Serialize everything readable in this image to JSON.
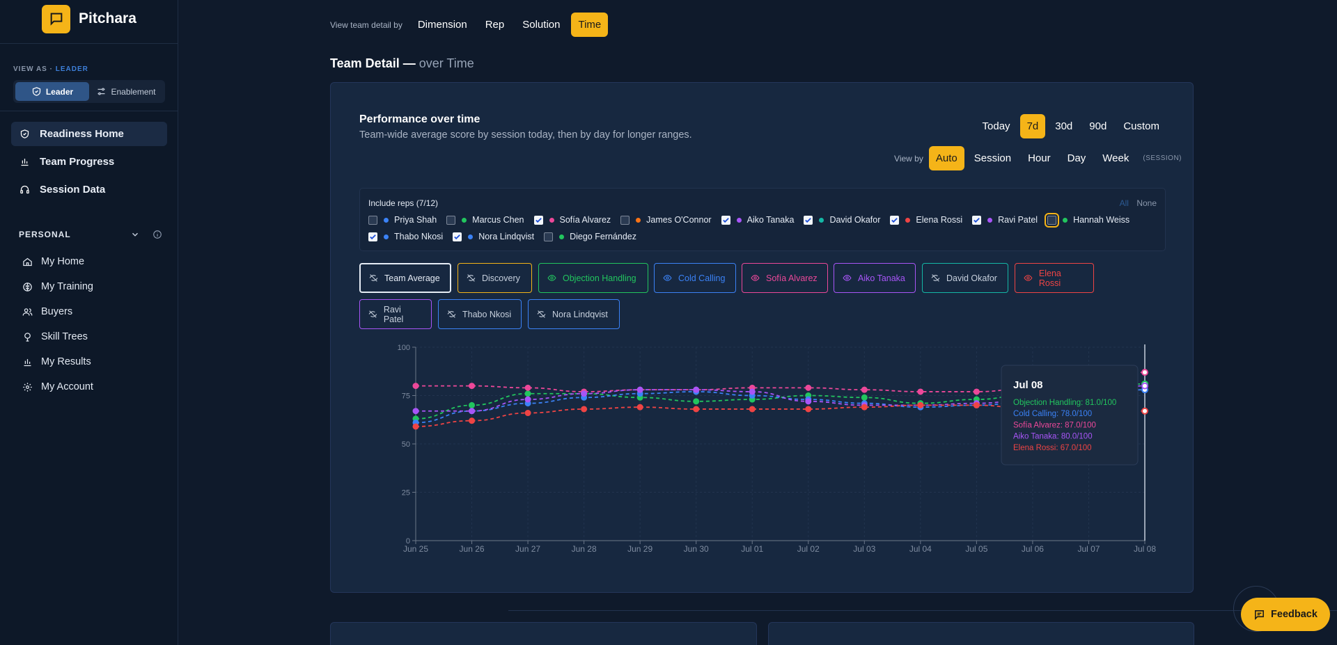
{
  "brand": {
    "name": "Pitchara"
  },
  "view_as": {
    "label": "VIEW AS",
    "role": "LEADER",
    "options": [
      "Leader",
      "Enablement"
    ],
    "active": "Leader"
  },
  "nav": [
    {
      "label": "Readiness Home",
      "icon": "shield-icon",
      "active": true
    },
    {
      "label": "Team Progress",
      "icon": "bar-chart-icon",
      "active": false
    },
    {
      "label": "Session Data",
      "icon": "headset-icon",
      "active": false
    }
  ],
  "personal": {
    "label": "PERSONAL",
    "items": [
      {
        "label": "My Home",
        "icon": "home-icon"
      },
      {
        "label": "My Training",
        "icon": "brain-icon"
      },
      {
        "label": "Buyers",
        "icon": "users-icon"
      },
      {
        "label": "Skill Trees",
        "icon": "tree-icon"
      },
      {
        "label": "My Results",
        "icon": "bar-chart-icon"
      },
      {
        "label": "My Account",
        "icon": "gear-icon"
      }
    ]
  },
  "topbar": {
    "label": "View team detail by",
    "options": [
      "Dimension",
      "Rep",
      "Solution",
      "Time"
    ],
    "active": "Time"
  },
  "page_title": {
    "main": "Team Detail —",
    "sub": "over Time"
  },
  "performance": {
    "title": "Performance over time",
    "subtitle": "Team-wide average score by session today, then by day for longer ranges.",
    "ranges": [
      "Today",
      "7d",
      "30d",
      "90d",
      "Custom"
    ],
    "active_range": "7d",
    "view_by_label": "View by",
    "view_by": [
      "Auto",
      "Session",
      "Hour",
      "Day",
      "Week"
    ],
    "active_view_by": "Auto",
    "view_by_note": "(SESSION)"
  },
  "reps": {
    "title": "Include reps (7/12)",
    "all_label": "All",
    "none_label": "None",
    "row1": [
      {
        "name": "Priya Shah",
        "color": "#3b82f6",
        "checked": false
      },
      {
        "name": "Marcus Chen",
        "color": "#22c55e",
        "checked": false
      },
      {
        "name": "Sofía Alvarez",
        "color": "#ec4899",
        "checked": true
      },
      {
        "name": "James O'Connor",
        "color": "#f97316",
        "checked": false
      },
      {
        "name": "Aiko Tanaka",
        "color": "#a855f7",
        "checked": true
      },
      {
        "name": "David Okafor",
        "color": "#14b8a6",
        "checked": true
      },
      {
        "name": "Elena Rossi",
        "color": "#ef4444",
        "checked": true
      },
      {
        "name": "Ravi Patel",
        "color": "#a855f7",
        "checked": true
      },
      {
        "name": "Hannah Weiss",
        "color": "#22c55e",
        "checked": false,
        "focused": true
      }
    ],
    "row2": [
      {
        "name": "Thabo Nkosi",
        "color": "#3b82f6",
        "checked": true
      },
      {
        "name": "Nora Lindqvist",
        "color": "#3b82f6",
        "checked": true
      },
      {
        "name": "Diego Fernández",
        "color": "#22c55e",
        "checked": false
      }
    ]
  },
  "series_toggles": [
    {
      "label": "Team Average",
      "color": "#e6ecf5",
      "visible": false
    },
    {
      "label": "Discovery",
      "color": "#f5b418",
      "visible": false
    },
    {
      "label": "Objection Handling",
      "color": "#22c55e",
      "visible": true
    },
    {
      "label": "Cold Calling",
      "color": "#3b82f6",
      "visible": true
    },
    {
      "label": "Sofía Alvarez",
      "color": "#ec4899",
      "visible": true
    },
    {
      "label": "Aiko Tanaka",
      "color": "#a855f7",
      "visible": true
    },
    {
      "label": "David Okafor",
      "color": "#14b8a6",
      "visible": false
    },
    {
      "label": "Elena Rossi",
      "color": "#ef4444",
      "visible": true
    },
    {
      "label": "Ravi Patel",
      "color": "#a855f7",
      "visible": false
    },
    {
      "label": "Thabo Nkosi",
      "color": "#3b82f6",
      "visible": false
    },
    {
      "label": "Nora Lindqvist",
      "color": "#3b82f6",
      "visible": false
    }
  ],
  "chart_data": {
    "type": "line",
    "x": [
      "Jun 25",
      "Jun 26",
      "Jun 27",
      "Jun 28",
      "Jun 29",
      "Jun 30",
      "Jul 01",
      "Jul 02",
      "Jul 03",
      "Jul 04",
      "Jul 05",
      "Jul 06",
      "Jul 07",
      "Jul 08"
    ],
    "ylim": [
      0,
      100
    ],
    "yticks": [
      0,
      25,
      50,
      75,
      100
    ],
    "grid": true,
    "series": [
      {
        "name": "Objection Handling",
        "color": "#22c55e",
        "values": [
          63,
          70,
          76,
          76,
          74,
          72,
          73,
          75,
          74,
          71,
          73,
          76,
          79,
          81
        ]
      },
      {
        "name": "Cold Calling",
        "color": "#3b82f6",
        "values": [
          61,
          67,
          71,
          74,
          76,
          77,
          75,
          73,
          71,
          69,
          70,
          72,
          75,
          78
        ]
      },
      {
        "name": "Sofía Alvarez",
        "color": "#ec4899",
        "values": [
          80,
          80,
          79,
          77,
          78,
          78,
          79,
          79,
          78,
          77,
          77,
          79,
          83,
          87
        ]
      },
      {
        "name": "Aiko Tanaka",
        "color": "#a855f7",
        "values": [
          67,
          67,
          73,
          76,
          78,
          78,
          77,
          72,
          70,
          70,
          71,
          73,
          77,
          80
        ]
      },
      {
        "name": "Elena Rossi",
        "color": "#ef4444",
        "values": [
          59,
          62,
          66,
          68,
          69,
          68,
          68,
          68,
          69,
          70,
          70,
          68,
          67,
          67
        ]
      }
    ],
    "tooltip": {
      "title": "Jul 08",
      "lines": [
        {
          "label": "Objection Handling: 81.0/100",
          "color": "#22c55e"
        },
        {
          "label": "Cold Calling: 78.0/100",
          "color": "#3b82f6"
        },
        {
          "label": "Sofía Alvarez: 87.0/100",
          "color": "#ec4899"
        },
        {
          "label": "Aiko Tanaka: 80.0/100",
          "color": "#a855f7"
        },
        {
          "label": "Elena Rossi: 67.0/100",
          "color": "#ef4444"
        }
      ]
    }
  },
  "feedback": {
    "label": "Feedback"
  }
}
